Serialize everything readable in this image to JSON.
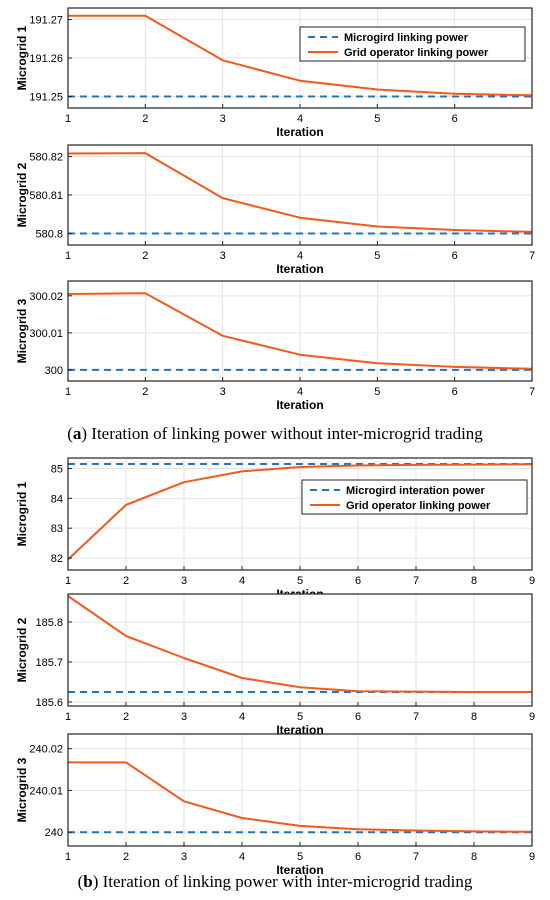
{
  "colors": {
    "baseline": "#1f77c4",
    "operator": "#f05a1c",
    "grid": "#e3e3e3",
    "axis": "#222222"
  },
  "captions": {
    "a": {
      "letter": "a",
      "text": " Iteration of linking power without inter-microgrid trading"
    },
    "b": {
      "letter": "b",
      "text": " Iteration of linking power with inter-microgrid trading"
    }
  },
  "chart_data": [
    {
      "type": "line",
      "panel": "a1",
      "xlabel": "Iteration",
      "ylabel": "Microgrid 1",
      "xlim": [
        1,
        7
      ],
      "ylim": [
        191.247,
        191.273
      ],
      "xticks": [
        1,
        2,
        3,
        4,
        5,
        6
      ],
      "yticks": [
        191.25,
        191.26,
        191.27
      ],
      "yticklabels": [
        "191.25",
        "191.26",
        "191.27"
      ],
      "grid": true,
      "legend": "top-right",
      "series": [
        {
          "name": "Microgird linking power",
          "style": "dashed",
          "color": "#1f77c4",
          "x": [
            1,
            7
          ],
          "y": [
            191.25,
            191.25
          ]
        },
        {
          "name": "Grid operator linking power",
          "style": "solid",
          "color": "#f05a1c",
          "x": [
            1,
            2,
            3,
            4,
            5,
            6,
            7
          ],
          "y": [
            191.271,
            191.271,
            191.2594,
            191.2541,
            191.2518,
            191.2507,
            191.2503
          ]
        }
      ]
    },
    {
      "type": "line",
      "panel": "a2",
      "xlabel": "Iteration",
      "ylabel": "Microgrid 2",
      "xlim": [
        1,
        7
      ],
      "ylim": [
        580.797,
        580.823
      ],
      "xticks": [
        1,
        2,
        3,
        4,
        5,
        6,
        7
      ],
      "yticks": [
        580.8,
        580.81,
        580.82
      ],
      "yticklabels": [
        "580.8",
        "580.81",
        "580.82"
      ],
      "grid": true,
      "series": [
        {
          "style": "dashed",
          "color": "#1f77c4",
          "x": [
            1,
            7
          ],
          "y": [
            580.8,
            580.8
          ]
        },
        {
          "style": "solid",
          "color": "#f05a1c",
          "x": [
            1,
            2,
            3,
            4,
            5,
            6,
            7
          ],
          "y": [
            580.8208,
            580.8209,
            580.8092,
            580.8041,
            580.8018,
            580.8009,
            580.8004
          ]
        }
      ]
    },
    {
      "type": "line",
      "panel": "a3",
      "xlabel": "Iteration",
      "ylabel": "Microgrid 3",
      "xlim": [
        1,
        7
      ],
      "ylim": [
        299.997,
        300.024
      ],
      "xticks": [
        1,
        2,
        3,
        4,
        5,
        6,
        7
      ],
      "yticks": [
        300,
        300.01,
        300.02
      ],
      "yticklabels": [
        "300",
        "300.01",
        "300.02"
      ],
      "grid": true,
      "series": [
        {
          "style": "dashed",
          "color": "#1f77c4",
          "x": [
            1,
            7
          ],
          "y": [
            300,
            300
          ]
        },
        {
          "style": "solid",
          "color": "#f05a1c",
          "x": [
            1,
            2,
            3,
            4,
            5,
            6,
            7
          ],
          "y": [
            300.0205,
            300.0207,
            300.0092,
            300.0041,
            300.0018,
            300.0008,
            300.0003
          ]
        }
      ]
    },
    {
      "type": "line",
      "panel": "b1",
      "xlabel": "Iteration",
      "ylabel": "Microgrid 1",
      "xlim": [
        1,
        9
      ],
      "ylim": [
        81.6,
        85.35
      ],
      "xticks": [
        1,
        2,
        3,
        4,
        5,
        6,
        7,
        8,
        9
      ],
      "yticks": [
        82,
        83,
        84,
        85
      ],
      "yticklabels": [
        "82",
        "83",
        "84",
        "85"
      ],
      "grid": true,
      "legend": "center-right",
      "series": [
        {
          "name": "Microgird interation power",
          "style": "dashed",
          "color": "#1f77c4",
          "x": [
            1,
            9
          ],
          "y": [
            85.15,
            85.15
          ]
        },
        {
          "name": "Grid operator linking power",
          "style": "solid",
          "color": "#f05a1c",
          "x": [
            1,
            2,
            3,
            4,
            5,
            6,
            7,
            8,
            9
          ],
          "y": [
            81.95,
            83.78,
            84.54,
            84.9,
            85.05,
            85.1,
            85.12,
            85.13,
            85.14
          ]
        }
      ]
    },
    {
      "type": "line",
      "panel": "b2",
      "xlabel": "Iteration",
      "ylabel": "Microgrid 2",
      "xlim": [
        1,
        9
      ],
      "ylim": [
        185.59,
        185.87
      ],
      "xticks": [
        1,
        2,
        3,
        4,
        5,
        6,
        7,
        8,
        9
      ],
      "yticks": [
        185.6,
        185.7,
        185.8
      ],
      "yticklabels": [
        "185.6",
        "185.7",
        "185.8"
      ],
      "grid": true,
      "series": [
        {
          "style": "dashed",
          "color": "#1f77c4",
          "x": [
            1,
            9
          ],
          "y": [
            185.625,
            185.625
          ]
        },
        {
          "style": "solid",
          "color": "#f05a1c",
          "x": [
            1,
            2,
            3,
            4,
            5,
            6,
            7,
            8,
            9
          ],
          "y": [
            185.865,
            185.765,
            185.71,
            185.66,
            185.637,
            185.627,
            185.626,
            185.625,
            185.625
          ]
        }
      ]
    },
    {
      "type": "line",
      "panel": "b3",
      "xlabel": "Iteration",
      "ylabel": "Microgrid 3",
      "xlim": [
        1,
        9
      ],
      "ylim": [
        239.9967,
        240.0235
      ],
      "xticks": [
        1,
        2,
        3,
        4,
        5,
        6,
        7,
        8,
        9
      ],
      "yticks": [
        240,
        240.01,
        240.02
      ],
      "yticklabels": [
        "240",
        "240.01",
        "240.02"
      ],
      "grid": true,
      "series": [
        {
          "style": "dashed",
          "color": "#1f77c4",
          "x": [
            1,
            9
          ],
          "y": [
            240,
            240
          ]
        },
        {
          "style": "solid",
          "color": "#f05a1c",
          "x": [
            1,
            2,
            3,
            4,
            5,
            6,
            7,
            8,
            9
          ],
          "y": [
            240.0167,
            240.0167,
            240.0074,
            240.0034,
            240.0015,
            240.0007,
            240.0004,
            240.0002,
            240.0001
          ]
        }
      ]
    }
  ]
}
